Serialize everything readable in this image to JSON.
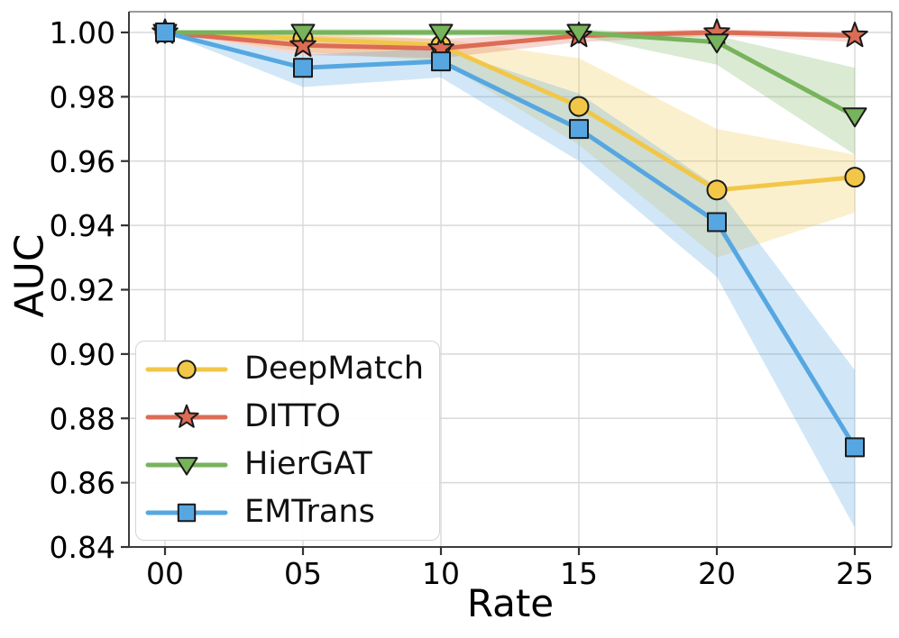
{
  "chart_data": {
    "type": "line",
    "title": "",
    "xlabel": "Rate",
    "ylabel": "AUC",
    "x": [
      0,
      5,
      10,
      15,
      20,
      25
    ],
    "x_tick_labels": [
      "00",
      "05",
      "10",
      "15",
      "20",
      "25"
    ],
    "y_ticks": [
      1.0,
      0.98,
      0.96,
      0.94,
      0.92,
      0.9,
      0.88,
      0.86,
      0.84
    ],
    "y_tick_labels": [
      "1.00",
      "0.98",
      "0.96",
      "0.94",
      "0.92",
      "0.90",
      "0.88",
      "0.86",
      "0.84"
    ],
    "xlim": [
      -1.31,
      26.34
    ],
    "ylim": [
      0.84,
      1.0064
    ],
    "grid": true,
    "legend_position": "lower-left",
    "band_alpha": 0.27,
    "series": [
      {
        "name": "DeepMatch",
        "marker": "circle",
        "color": "#F2C748",
        "values": [
          1.0,
          0.998,
          0.996,
          0.977,
          0.951,
          0.955
        ],
        "band_lower": [
          1.0,
          0.994,
          0.991,
          0.965,
          0.93,
          0.944
        ],
        "band_upper": [
          1.0,
          1.0,
          0.998,
          0.992,
          0.97,
          0.962
        ]
      },
      {
        "name": "DITTO",
        "marker": "star",
        "color": "#DC6C55",
        "values": [
          1.0,
          0.996,
          0.995,
          0.999,
          1.0,
          0.999
        ],
        "band_lower": [
          1.0,
          0.993,
          0.992,
          0.997,
          0.999,
          0.997
        ],
        "band_upper": [
          1.0,
          0.999,
          0.998,
          1.0,
          1.001,
          1.0
        ]
      },
      {
        "name": "HierGAT",
        "marker": "triangle-down",
        "color": "#77B35B",
        "values": [
          1.0,
          1.0,
          1.0,
          1.0,
          0.997,
          0.974
        ],
        "band_lower": [
          1.0,
          0.999,
          0.999,
          0.999,
          0.99,
          0.962
        ],
        "band_upper": [
          1.0,
          1.001,
          1.001,
          1.001,
          0.999,
          0.989
        ]
      },
      {
        "name": "EMTrans",
        "marker": "square",
        "color": "#56A7E1",
        "values": [
          1.0,
          0.989,
          0.991,
          0.97,
          0.941,
          0.871
        ],
        "band_lower": [
          1.0,
          0.983,
          0.986,
          0.96,
          0.924,
          0.846
        ],
        "band_upper": [
          1.0,
          0.993,
          0.995,
          0.981,
          0.952,
          0.895
        ]
      }
    ],
    "style": {
      "grid_color": "#d8d8d8",
      "spine_dark": "#3c3c3c",
      "spine_light": "#9a9a9a",
      "tick_color": "#333333",
      "marker_edge": "#1a1a1a",
      "text_color": "#000000"
    }
  }
}
